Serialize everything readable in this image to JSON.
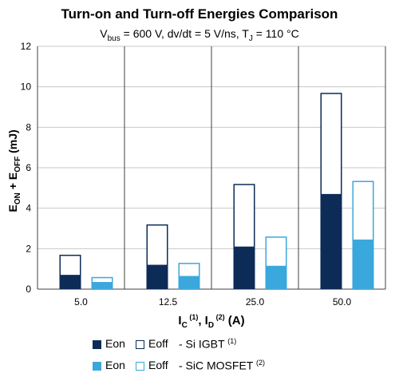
{
  "chart_data": {
    "type": "bar",
    "title": "Turn-on and Turn-off Energies Comparison",
    "subtitle": {
      "v": "V",
      "v_sub": "bus",
      "mid": " = 600 V, dv/dt = 5 V/ns, T",
      "t_sub": "J",
      "end": " = 110 °C"
    },
    "categories": [
      "5.0",
      "12.5",
      "25.0",
      "50.0"
    ],
    "xlabel": {
      "ic": "I",
      "ic_sub": "C",
      "ic_sup": " (1)",
      "sep": ", ",
      "id": "I",
      "id_sub": "D",
      "id_sup": " (2)",
      "unit": " (A)"
    },
    "ylabel": {
      "e1": "E",
      "e1_sub": "ON",
      "plus": " + ",
      "e2": "E",
      "e2_sub": "OFF",
      "unit": " (mJ)"
    },
    "ylim": [
      0,
      12
    ],
    "yticks": [
      "0",
      "2",
      "4",
      "6",
      "8",
      "10",
      "12"
    ],
    "grid": true,
    "stacked": true,
    "series": [
      {
        "name": "Eon",
        "group": "Si IGBT",
        "values": [
          0.7,
          1.2,
          2.1,
          4.7
        ]
      },
      {
        "name": "Eoff",
        "group": "Si IGBT",
        "values": [
          1.0,
          2.0,
          3.1,
          5.0
        ]
      },
      {
        "name": "Eon",
        "group": "SiC MOSFET",
        "values": [
          0.35,
          0.65,
          1.15,
          2.45
        ]
      },
      {
        "name": "Eoff",
        "group": "SiC MOSFET",
        "values": [
          0.25,
          0.65,
          1.45,
          2.9
        ]
      }
    ],
    "colors": {
      "igbt": "#0d2b57",
      "mosfet": "#3aa8dc",
      "grid": "#c8c8c8",
      "axis": "#404040"
    },
    "legend": {
      "row1": {
        "eon": "Eon",
        "eoff": "Eoff",
        "suffix": "- Si IGBT",
        "sup": "(1)"
      },
      "row2": {
        "eon": "Eon",
        "eoff": "Eoff",
        "suffix": "- SiC MOSFET",
        "sup": "(2)"
      },
      "position": "bottom"
    }
  }
}
